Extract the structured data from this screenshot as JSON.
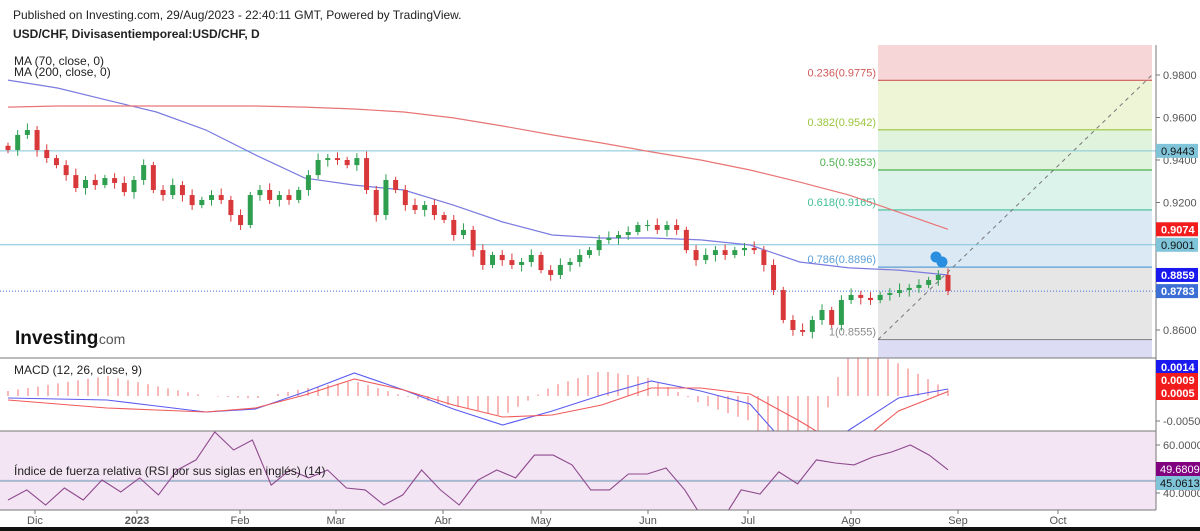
{
  "header": {
    "published": "Published on Investing.com, 29/Aug/2023 - 22:40:11 GMT, Powered by TradingView.",
    "symbol": "USD/CHF, Divisasentiemporeal:USD/CHF, D"
  },
  "legend": {
    "ma70": "MA (70, close, 0)",
    "ma200": "MA (200, close, 0)"
  },
  "logo": {
    "main": "Investing",
    "suffix": ".com"
  },
  "colors": {
    "ma70": "#7b7be0",
    "ma200": "#e87575",
    "up": "#2e9e4f",
    "down": "#d9383a",
    "macd": "#5b5bf0",
    "signal": "#f05a5a",
    "rsi": "#8e4a8e",
    "rsi_bg": "#f3e5f3",
    "hline": "#7fc4d8"
  },
  "chart_data": [
    {
      "type": "candlestick",
      "title": "USD/CHF, D",
      "ylim": [
        0.85,
        0.995
      ],
      "y_ticks": [
        "0.9800",
        "0.9600",
        "0.9400",
        "0.9200",
        "0.8600"
      ],
      "x_ticks": [
        "Dic",
        "2023",
        "Feb",
        "Mar",
        "Abr",
        "May",
        "Jun",
        "Jul",
        "Ago",
        "Sep",
        "Oct"
      ],
      "closes": [
        0.9447,
        0.9518,
        0.9541,
        0.9447,
        0.9409,
        0.9376,
        0.9329,
        0.9268,
        0.9306,
        0.9282,
        0.9315,
        0.9292,
        0.9249,
        0.9306,
        0.9376,
        0.9259,
        0.9235,
        0.9282,
        0.9235,
        0.9188,
        0.9212,
        0.9235,
        0.9212,
        0.9141,
        0.9094,
        0.9235,
        0.9259,
        0.9212,
        0.9235,
        0.9212,
        0.9259,
        0.9329,
        0.94,
        0.9409,
        0.94,
        0.9376,
        0.9409,
        0.9259,
        0.9141,
        0.9306,
        0.9259,
        0.9188,
        0.9165,
        0.9188,
        0.9141,
        0.9118,
        0.9047,
        0.9071,
        0.8976,
        0.8906,
        0.8953,
        0.8929,
        0.8906,
        0.892,
        0.8953,
        0.8882,
        0.8859,
        0.8906,
        0.892,
        0.8953,
        0.8976,
        0.9024,
        0.9033,
        0.9047,
        0.9061,
        0.9094,
        0.9094,
        0.9071,
        0.9094,
        0.9071,
        0.8976,
        0.8929,
        0.8953,
        0.8976,
        0.8953,
        0.8976,
        0.8986,
        0.8976,
        0.8906,
        0.8788,
        0.8647,
        0.86,
        0.8591,
        0.8647,
        0.8694,
        0.8624,
        0.8741,
        0.8765,
        0.8751,
        0.8741,
        0.8765,
        0.8774,
        0.8788,
        0.8798,
        0.8812,
        0.8835,
        0.8859,
        0.8783
      ],
      "series": [
        {
          "name": "MA (70, close, 0)",
          "values": [
            0.9776,
            0.9739,
            0.9682,
            0.9626,
            0.9541,
            0.9424,
            0.9315,
            0.9282,
            0.9259,
            0.9188,
            0.9108,
            0.9047,
            0.9033,
            0.9033,
            0.9024,
            0.9,
            0.892,
            0.8892,
            0.8882,
            0.8859
          ]
        },
        {
          "name": "MA (200, close, 0)",
          "values": [
            0.9649,
            0.9654,
            0.9654,
            0.9654,
            0.9654,
            0.9654,
            0.9649,
            0.964,
            0.9626,
            0.9598,
            0.956,
            0.9518,
            0.948,
            0.9438,
            0.94,
            0.9353,
            0.9296,
            0.9235,
            0.9155,
            0.9074
          ]
        }
      ],
      "fibonacci": [
        {
          "label": "0.236(0.9775)",
          "value": 0.9775,
          "color": "#d05a5a",
          "fill": "#f6d6d6"
        },
        {
          "label": "0.382(0.9542)",
          "value": 0.9542,
          "color": "#9cc43a",
          "fill": "#eef4d6"
        },
        {
          "label": "0.5(0.9353)",
          "value": 0.9353,
          "color": "#4cb04c",
          "fill": "#e0f3dd"
        },
        {
          "label": "0.618(0.9165)",
          "value": 0.9165,
          "color": "#3fbf95",
          "fill": "#dcf3ec"
        },
        {
          "label": "0.786(0.8896)",
          "value": 0.8896,
          "color": "#5b9fd6",
          "fill": "#dbe9f5"
        },
        {
          "label": "1(0.8555)",
          "value": 0.8555,
          "color": "#8a8a8a",
          "fill": "#e6e6e6"
        }
      ],
      "horizontal_lines": [
        0.9443,
        0.9001
      ],
      "price_labels": [
        {
          "text": "0.9443",
          "value": 0.9443,
          "bg": "#7fc4d8",
          "fg": "#111"
        },
        {
          "text": "0.9074",
          "value": 0.9074,
          "bg": "#f21c1c",
          "fg": "#fff"
        },
        {
          "text": "0.9001",
          "value": 0.9001,
          "bg": "#7fc4d8",
          "fg": "#111"
        },
        {
          "text": "0.8859",
          "value": 0.8859,
          "bg": "#1a1af0",
          "fg": "#fff"
        },
        {
          "text": "0.8783",
          "value": 0.8783,
          "bg": "#3c6fd6",
          "fg": "#fff"
        }
      ]
    },
    {
      "type": "line",
      "title": "MACD (12, 26, close, 9)",
      "y_ticks": [
        "-0.0050"
      ],
      "series": [
        {
          "name": "MACD",
          "values": [
            -0.0004,
            -0.0006,
            -0.0008,
            -0.002,
            -0.0032,
            -0.0026,
            0.0008,
            0.0046,
            0.0012,
            -0.0026,
            -0.0058,
            -0.003,
            0.0002,
            0.003,
            0.001,
            -0.0016,
            -0.0128,
            -0.0068,
            -0.0004,
            0.0014
          ]
        },
        {
          "name": "Signal",
          "values": [
            -0.0008,
            -0.0016,
            -0.0024,
            -0.0028,
            -0.0032,
            -0.0024,
            0.0002,
            0.0034,
            0.0012,
            -0.0018,
            -0.0042,
            -0.0038,
            -0.0018,
            0.0016,
            0.0016,
            0.0004,
            -0.005,
            -0.011,
            -0.003,
            0.0009
          ]
        }
      ],
      "value_labels": [
        {
          "text": "0.0014",
          "bg": "#1a1af0"
        },
        {
          "text": "0.0009",
          "bg": "#f21c1c"
        },
        {
          "text": "0.0005",
          "bg": "#f21c1c"
        }
      ]
    },
    {
      "type": "line",
      "title": "Índice de fuerza relativa (RSI por sus siglas en inglés) (14)",
      "y_ticks": [
        "60.0000",
        "40.0000"
      ],
      "values": [
        37.1,
        41.3,
        35,
        42.1,
        37.1,
        45.4,
        40.4,
        46.3,
        39.2,
        49.6,
        53.8,
        65.4,
        57.9,
        62.1,
        43.3,
        49.6,
        46.3,
        49.6,
        42.1,
        41.3,
        35,
        39.2,
        49.6,
        41.3,
        35,
        45.4,
        49.6,
        46.3,
        55.8,
        55.8,
        51.7,
        41.3,
        41.3,
        47.9,
        47.9,
        50.4,
        41.3,
        28.8,
        28.8,
        41.3,
        39.6,
        48.8,
        43.8,
        53.8,
        52.5,
        51.7,
        55,
        57.1,
        60,
        55.8,
        49.68
      ],
      "level": 45.0613,
      "value_labels": [
        {
          "text": "49.6809",
          "value": 49.6809,
          "bg": "#800080",
          "fg": "#fff"
        },
        {
          "text": "45.0613",
          "value": 45.0613,
          "bg": "#7fc4d8",
          "fg": "#111"
        }
      ]
    }
  ]
}
